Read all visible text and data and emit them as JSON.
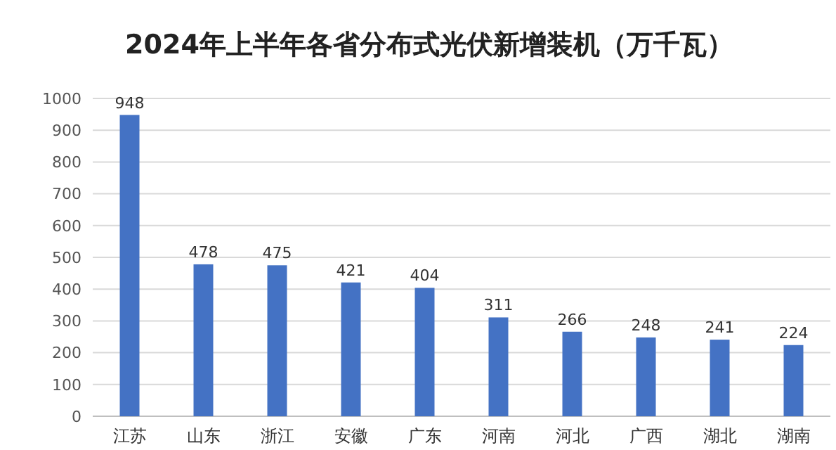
{
  "chart_data": {
    "type": "bar",
    "title": "2024年上半年各省分布式光伏新增装机（万千瓦）",
    "categories": [
      "江苏",
      "山东",
      "浙江",
      "安徽",
      "广东",
      "河南",
      "河北",
      "广西",
      "湖北",
      "湖南"
    ],
    "values": [
      948,
      478,
      475,
      421,
      404,
      311,
      266,
      248,
      241,
      224
    ],
    "color": "#4472c4",
    "data_labels": true,
    "ylim": [
      0,
      1000
    ],
    "yticks": [
      0,
      100,
      200,
      300,
      400,
      500,
      600,
      700,
      800,
      900,
      1000
    ],
    "grid": "y"
  }
}
